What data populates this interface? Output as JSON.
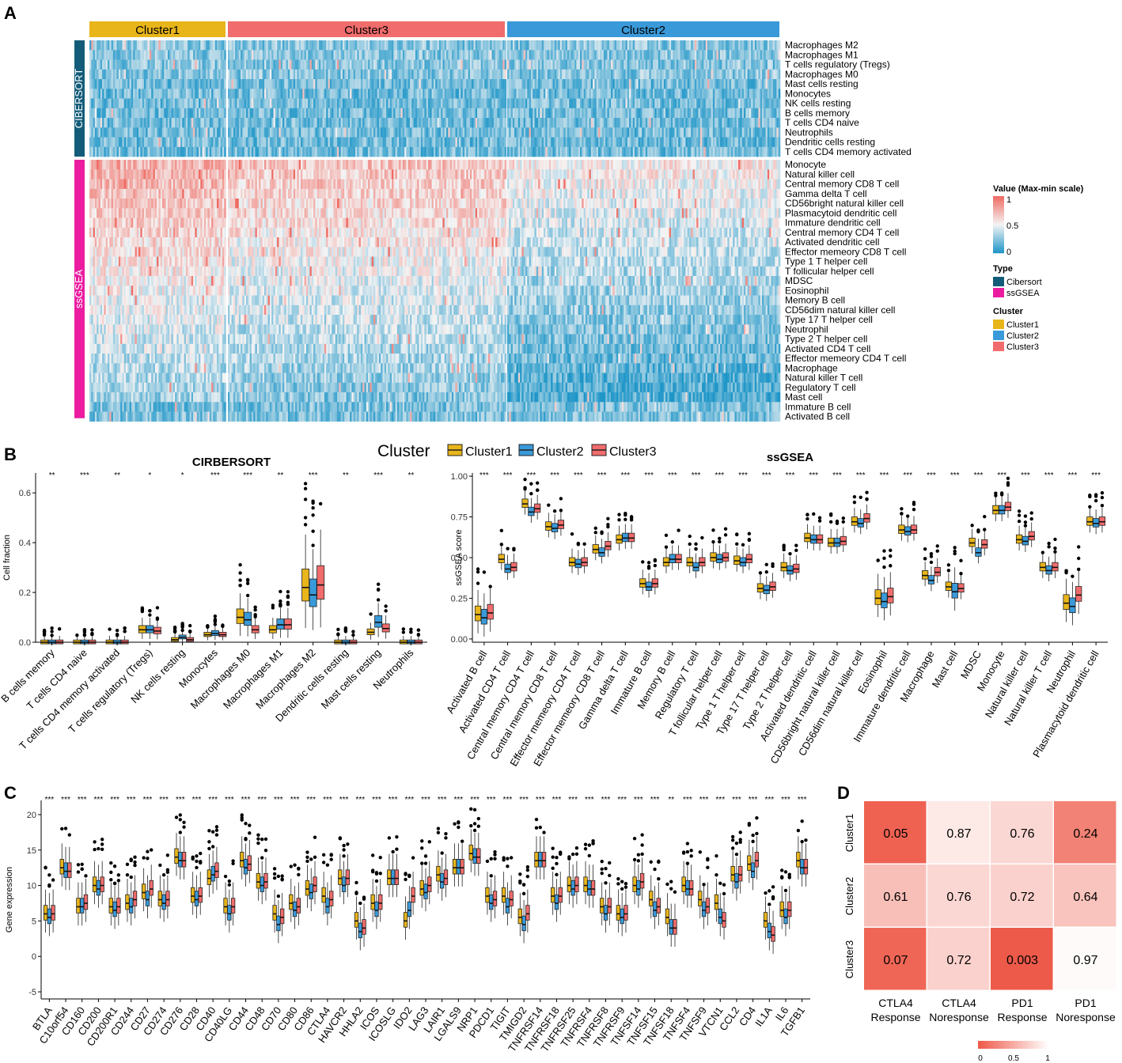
{
  "panel_labels": {
    "a": "A",
    "b": "B",
    "c": "C",
    "d": "D"
  },
  "heatmap": {
    "cluster_headers": [
      "Cluster1",
      "Cluster3",
      "Cluster2"
    ],
    "type_labels": [
      "CIBERSORT",
      "ssGSEA"
    ],
    "rows_cibersort": [
      "Macrophages M2",
      "Macrophages M1",
      "T cells regulatory (Tregs)",
      "Macrophages M0",
      "Mast cells resting",
      "Monocytes",
      "NK cells resting",
      "B cells memory",
      "T cells CD4 naive",
      "Neutrophils",
      "Dendritic cells resting",
      "T cells CD4 memory activated"
    ],
    "rows_ssgsea": [
      "Monocyte",
      "Natural killer cell",
      "Central memory CD8 T cell",
      "Gamma delta T cell",
      "CD56bright natural killer cell",
      "Plasmacytoid dendritic cell",
      "Immature dendritic cell",
      "Central memory CD4 T cell",
      "Activated dendritic cell",
      "Effector memeory CD8 T cell",
      "Type 1 T helper cell",
      "T follicular helper cell",
      "MDSC",
      "Eosinophil",
      "Memory B cell",
      "CD56dim natural killer cell",
      "Type 17 T helper cell",
      "Neutrophil",
      "Type 2 T helper cell",
      "Activated CD4 T cell",
      "Effector memeory CD4 T cell",
      "Macrophage",
      "Natural killer T cell",
      "Regulatory T cell",
      "Mast cell",
      "Immature  B cell",
      "Activated B cell"
    ],
    "legend": {
      "value_title": "Value (Max-min scale)",
      "value_ticks": [
        "1",
        "0.5",
        "0"
      ],
      "type_title": "Type",
      "type_items": [
        "Cibersort",
        "ssGSEA"
      ],
      "cluster_title": "Cluster",
      "cluster_items": [
        "Cluster1",
        "Cluster2",
        "Cluster3"
      ]
    },
    "colors": {
      "high": "#ef6a62",
      "mid": "#f4f4f4",
      "low": "#1f96c8",
      "cibersort": "#135c79",
      "ssgsea": "#ec1ca0"
    }
  },
  "legend_b": {
    "title": "Cluster",
    "items": [
      "Cluster1",
      "Cluster2",
      "Cluster3"
    ]
  },
  "colors": {
    "cluster1": "#e8b51a",
    "cluster2": "#3a9ad9",
    "cluster3": "#f16c6c"
  },
  "chart_data": [
    {
      "type": "box",
      "id": "cibersort",
      "title": "CIRBERSORT",
      "ylabel": "Cell fraction",
      "ylim": [
        0,
        0.68
      ],
      "yticks": [
        "0.0",
        "0.2",
        "0.4",
        "0.6"
      ],
      "categories": [
        "B cells memory",
        "T cells CD4 naive",
        "T cells CD4 memory activated",
        "T cells regulatory (Tregs)",
        "NK cells resting",
        "Monocytes",
        "Macrophages M0",
        "Macrophages M1",
        "Macrophages M2",
        "Dendritic cells resting",
        "Mast cells resting",
        "Neutrophils"
      ],
      "significance": [
        "**",
        "***",
        "**",
        "*",
        "*",
        "***",
        "***",
        "**",
        "***",
        "**",
        "***",
        "**"
      ],
      "medians": [
        [
          0,
          0,
          0
        ],
        [
          0,
          0,
          0
        ],
        [
          0,
          0,
          0
        ],
        [
          0.05,
          0.05,
          0.045
        ],
        [
          0.01,
          0.02,
          0.01
        ],
        [
          0.03,
          0.035,
          0.03
        ],
        [
          0.1,
          0.09,
          0.05
        ],
        [
          0.05,
          0.07,
          0.07
        ],
        [
          0.22,
          0.19,
          0.23
        ],
        [
          0,
          0,
          0
        ],
        [
          0.04,
          0.08,
          0.055
        ],
        [
          0,
          0,
          0
        ]
      ]
    },
    {
      "type": "box",
      "id": "ssgsea",
      "title": "ssGSEA",
      "ylabel": "ssGSEA score",
      "ylim": [
        -0.02,
        1.02
      ],
      "yticks": [
        "0.00",
        "0.25",
        "0.50",
        "0.75",
        "1.00"
      ],
      "categories": [
        "Activated B cell",
        "Activated CD4 T cell",
        "Central memory CD4 T cell",
        "Central memory CD8 T cell",
        "Effector memeory CD4 T cell",
        "Effector memeory CD8 T cell",
        "Gamma delta T cell",
        "Immature  B cell",
        "Memory B cell",
        "Regulatory T cell",
        "T follicular helper cell",
        "Type 1 T helper cell",
        "Type 17 T helper cell",
        "Type 2 T helper cell",
        "Activated dendritic cell",
        "CD56bright natural killer cell",
        "CD56dim natural killer cell",
        "Eosinophil",
        "Immature dendritic cell",
        "Macrophage",
        "Mast cell",
        "MDSC",
        "Monocyte",
        "Natural killer cell",
        "Natural killer T cell",
        "Neutrophil",
        "Plasmacytoid dendritic cell"
      ],
      "significance": [
        "***",
        "***",
        "***",
        "***",
        "***",
        "***",
        "***",
        "***",
        "***",
        "***",
        "***",
        "***",
        "***",
        "***",
        "***",
        "***",
        "***",
        "***",
        "***",
        "***",
        "***",
        "***",
        "***",
        "***",
        "***",
        "***",
        "***"
      ],
      "medians": [
        [
          0.15,
          0.13,
          0.16
        ],
        [
          0.49,
          0.43,
          0.44
        ],
        [
          0.83,
          0.78,
          0.8
        ],
        [
          0.69,
          0.68,
          0.7
        ],
        [
          0.47,
          0.46,
          0.47
        ],
        [
          0.55,
          0.53,
          0.57
        ],
        [
          0.61,
          0.62,
          0.62
        ],
        [
          0.34,
          0.32,
          0.34
        ],
        [
          0.47,
          0.49,
          0.49
        ],
        [
          0.47,
          0.44,
          0.47
        ],
        [
          0.5,
          0.49,
          0.5
        ],
        [
          0.48,
          0.47,
          0.49
        ],
        [
          0.31,
          0.3,
          0.32
        ],
        [
          0.44,
          0.42,
          0.43
        ],
        [
          0.62,
          0.61,
          0.61
        ],
        [
          0.59,
          0.59,
          0.6
        ],
        [
          0.72,
          0.71,
          0.74
        ],
        [
          0.25,
          0.23,
          0.26
        ],
        [
          0.67,
          0.66,
          0.67
        ],
        [
          0.39,
          0.36,
          0.41
        ],
        [
          0.32,
          0.29,
          0.31
        ],
        [
          0.59,
          0.53,
          0.58
        ],
        [
          0.79,
          0.79,
          0.81
        ],
        [
          0.61,
          0.6,
          0.63
        ],
        [
          0.44,
          0.42,
          0.44
        ],
        [
          0.22,
          0.2,
          0.27
        ],
        [
          0.72,
          0.71,
          0.72
        ]
      ]
    },
    {
      "type": "box",
      "id": "genes",
      "ylabel": "Gene expression",
      "ylim": [
        -6,
        22
      ],
      "yticks": [
        "-5",
        "0",
        "5",
        "10",
        "15",
        "20"
      ],
      "categories": [
        "BTLA",
        "C10orf54",
        "CD160",
        "CD200",
        "CD200R1",
        "CD244",
        "CD27",
        "CD274",
        "CD276",
        "CD28",
        "CD40",
        "CD40LG",
        "CD44",
        "CD48",
        "CD70",
        "CD80",
        "CD86",
        "CTLA4",
        "HAVCR2",
        "HHLA2",
        "ICOS",
        "ICOSLG",
        "IDO2",
        "LAG3",
        "LAIR1",
        "LGALS9",
        "NRP1",
        "PDCD1",
        "TIGIT",
        "TMIGD2",
        "TNFRSF14",
        "TNFRSF18",
        "TNFRSF25",
        "TNFRSF4",
        "TNFRSF8",
        "TNFRSF9",
        "TNFSF14",
        "TNFSF15",
        "TNFSF18",
        "TNFSF4",
        "TNFSF9",
        "VTCN1",
        "CCL2",
        "CD4",
        "IL1A",
        "IL6",
        "TGFB1"
      ],
      "significance": [
        "***",
        "***",
        "***",
        "***",
        "***",
        "***",
        "***",
        "***",
        "***",
        "***",
        "***",
        "***",
        "***",
        "***",
        "***",
        "***",
        "***",
        "***",
        "***",
        "***",
        "***",
        "***",
        "***",
        "***",
        "***",
        "***",
        "***",
        "***",
        "***",
        "***",
        "***",
        "***",
        "***",
        "***",
        "***",
        "***",
        "***",
        "***",
        "**",
        "***",
        "***",
        "***",
        "***",
        "***",
        "***",
        "***",
        "***"
      ],
      "medians": [
        [
          6,
          5.5,
          6
        ],
        [
          12.5,
          12,
          12
        ],
        [
          7,
          7,
          7.5
        ],
        [
          10,
          9.5,
          10
        ],
        [
          7,
          6.5,
          7
        ],
        [
          7.5,
          7,
          8
        ],
        [
          9,
          8,
          9.5
        ],
        [
          8,
          7.5,
          8
        ],
        [
          14,
          13.5,
          13.5
        ],
        [
          8.5,
          8,
          8.5
        ],
        [
          11,
          11.5,
          12
        ],
        [
          7,
          6,
          7
        ],
        [
          13.5,
          12.5,
          13
        ],
        [
          10.5,
          10,
          10.5
        ],
        [
          6,
          4.5,
          5.5
        ],
        [
          7.5,
          6.5,
          7
        ],
        [
          9.5,
          9,
          10
        ],
        [
          8.5,
          7,
          8
        ],
        [
          11,
          10,
          11
        ],
        [
          5,
          3.5,
          4
        ],
        [
          7.5,
          6.5,
          7.5
        ],
        [
          11,
          11,
          11
        ],
        [
          5,
          6.5,
          8.5
        ],
        [
          9.5,
          9,
          10
        ],
        [
          11.5,
          10.5,
          11
        ],
        [
          12.5,
          12.5,
          12.5
        ],
        [
          14.5,
          14,
          14
        ],
        [
          8.5,
          7.5,
          8
        ],
        [
          8.5,
          7,
          8
        ],
        [
          5.5,
          4.5,
          6
        ],
        [
          13.5,
          13.5,
          13.5
        ],
        [
          8.5,
          7.5,
          8.5
        ],
        [
          10,
          9.5,
          10
        ],
        [
          10,
          9.5,
          9.5
        ],
        [
          7,
          6,
          7
        ],
        [
          6,
          5.5,
          6
        ],
        [
          10,
          9.5,
          10.5
        ],
        [
          8,
          6.5,
          7
        ],
        [
          5.5,
          4,
          4
        ],
        [
          10,
          9.5,
          9.5
        ],
        [
          8,
          6.5,
          7
        ],
        [
          7.5,
          5.5,
          5
        ],
        [
          11.5,
          10.5,
          11.5
        ],
        [
          13,
          12,
          13.5
        ],
        [
          5,
          3.5,
          3
        ],
        [
          6.5,
          5.5,
          6.5
        ],
        [
          13.5,
          12.5,
          12.5
        ]
      ]
    },
    {
      "type": "heatmap",
      "id": "tide",
      "rows": [
        "Cluster1",
        "Cluster2",
        "Cluster3"
      ],
      "columns": [
        [
          "CTLA4",
          "Response"
        ],
        [
          "CTLA4",
          "Noresponse"
        ],
        [
          "PD1",
          "Response"
        ],
        [
          "PD1",
          "Noresponse"
        ]
      ],
      "values": [
        [
          "0.05",
          "0.87",
          "0.76",
          "0.24"
        ],
        [
          "0.61",
          "0.76",
          "0.72",
          "0.64"
        ],
        [
          "0.07",
          "0.72",
          "0.003",
          "0.97"
        ]
      ],
      "legend_ticks": [
        "0",
        "0.5",
        "1"
      ]
    }
  ]
}
